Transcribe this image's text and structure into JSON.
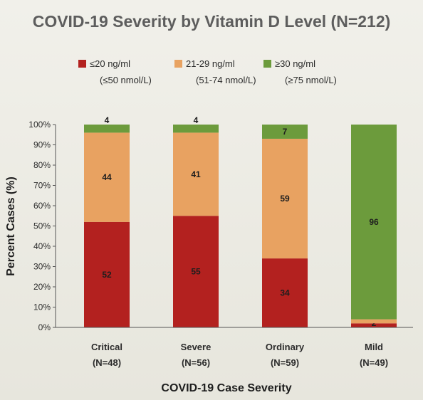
{
  "chart_data": {
    "type": "bar",
    "stacked": true,
    "title": "COVID-19 Severity by Vitamin D Level (N=212)",
    "xlabel": "COVID-19 Case Severity",
    "ylabel": "Percent Cases (%)",
    "ylim": [
      0,
      100
    ],
    "y_ticks": [
      "0%",
      "10%",
      "20%",
      "30%",
      "40%",
      "50%",
      "60%",
      "70%",
      "80%",
      "90%",
      "100%"
    ],
    "grid": false,
    "legend_position": "top",
    "categories": [
      "Critical",
      "Severe",
      "Ordinary",
      "Mild"
    ],
    "category_counts": [
      "(N=48)",
      "(N=56)",
      "(N=59)",
      "(N=49)"
    ],
    "series": [
      {
        "name": "≤20 ng/ml",
        "subname": "(≤50 nmol/L)",
        "color": "#b3211f",
        "values": [
          52,
          55,
          34,
          2
        ]
      },
      {
        "name": "21-29 ng/ml",
        "subname": "(51-74 nmol/L)",
        "color": "#e8a261",
        "values": [
          44,
          41,
          59,
          2
        ]
      },
      {
        "name": "≥30 ng/ml",
        "subname": "(≥75 nmol/L)",
        "color": "#6c9b3c",
        "values": [
          4,
          4,
          7,
          96
        ]
      }
    ],
    "data_labels": [
      [
        "52",
        "44",
        "4"
      ],
      [
        "55",
        "41",
        "4"
      ],
      [
        "34",
        "59",
        "7"
      ],
      [
        "2",
        "",
        "96"
      ]
    ]
  }
}
